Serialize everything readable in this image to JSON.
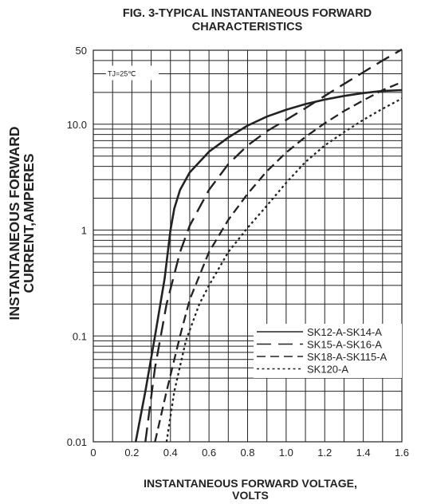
{
  "chart_data": {
    "type": "line",
    "title_lines": [
      "FIG. 3-TYPICAL INSTANTANEOUS FORWARD",
      "CHARACTERISTICS"
    ],
    "xlabel_lines": [
      "INSTANTANEOUS FORWARD VOLTAGE,",
      "VOLTS"
    ],
    "ylabel_lines": [
      "INSTANTANEOUS FORWARD",
      "CURRENT,AMPERES"
    ],
    "annotation": "TJ=25℃",
    "x_scale": "linear",
    "y_scale": "log",
    "xlim": [
      0,
      1.6
    ],
    "ylim": [
      0.01,
      50
    ],
    "x_ticks": [
      0,
      0.2,
      0.4,
      0.6,
      0.8,
      1.0,
      1.2,
      1.4,
      1.6
    ],
    "x_tick_labels": [
      "0",
      "0.2",
      "0.4",
      "0.6",
      "0.8",
      "1.0",
      "1.2",
      "1.4",
      "1.6"
    ],
    "y_ticks": [
      0.01,
      0.1,
      1,
      10,
      50
    ],
    "y_tick_labels": [
      "0.01",
      "0.1",
      "1",
      "10.0",
      "50"
    ],
    "grid": true,
    "legend_position": "lower-right",
    "series": [
      {
        "name": "SK12-A-SK14-A",
        "dash": "solid",
        "color": "#222222",
        "points": [
          [
            0.22,
            0.01
          ],
          [
            0.27,
            0.03
          ],
          [
            0.32,
            0.1
          ],
          [
            0.37,
            0.35
          ],
          [
            0.4,
            1.0
          ],
          [
            0.42,
            1.6
          ],
          [
            0.45,
            2.4
          ],
          [
            0.5,
            3.5
          ],
          [
            0.6,
            5.5
          ],
          [
            0.7,
            7.5
          ],
          [
            0.8,
            9.7
          ],
          [
            0.9,
            11.8
          ],
          [
            1.0,
            13.7
          ],
          [
            1.1,
            15.5
          ],
          [
            1.2,
            17.1
          ],
          [
            1.3,
            18.5
          ],
          [
            1.4,
            19.7
          ],
          [
            1.5,
            20.6
          ],
          [
            1.6,
            21.0
          ]
        ]
      },
      {
        "name": "SK15-A-SK16-A",
        "dash": "long-dash",
        "color": "#222222",
        "points": [
          [
            0.27,
            0.01
          ],
          [
            0.32,
            0.05
          ],
          [
            0.38,
            0.2
          ],
          [
            0.45,
            0.62
          ],
          [
            0.5,
            1.1
          ],
          [
            0.6,
            2.4
          ],
          [
            0.7,
            4.2
          ],
          [
            0.8,
            6.3
          ],
          [
            0.9,
            8.6
          ],
          [
            1.0,
            11.0
          ],
          [
            1.1,
            14.2
          ],
          [
            1.2,
            18.5
          ],
          [
            1.3,
            24.0
          ],
          [
            1.4,
            31.0
          ],
          [
            1.5,
            40.0
          ],
          [
            1.6,
            51.0
          ]
        ]
      },
      {
        "name": "SK18-A-SK115-A",
        "dash": "dash",
        "color": "#222222",
        "points": [
          [
            0.32,
            0.01
          ],
          [
            0.38,
            0.03
          ],
          [
            0.45,
            0.1
          ],
          [
            0.5,
            0.22
          ],
          [
            0.6,
            0.62
          ],
          [
            0.7,
            1.25
          ],
          [
            0.8,
            2.2
          ],
          [
            0.9,
            3.6
          ],
          [
            1.0,
            5.4
          ],
          [
            1.1,
            7.6
          ],
          [
            1.2,
            10.2
          ],
          [
            1.3,
            13.3
          ],
          [
            1.4,
            16.8
          ],
          [
            1.5,
            21.0
          ],
          [
            1.6,
            25.0
          ]
        ]
      },
      {
        "name": "SK120-A",
        "dash": "dotted",
        "color": "#222222",
        "points": [
          [
            0.38,
            0.01
          ],
          [
            0.42,
            0.03
          ],
          [
            0.48,
            0.09
          ],
          [
            0.55,
            0.2
          ],
          [
            0.6,
            0.3
          ],
          [
            0.7,
            0.62
          ],
          [
            0.8,
            1.05
          ],
          [
            0.9,
            1.7
          ],
          [
            1.0,
            2.8
          ],
          [
            1.1,
            4.4
          ],
          [
            1.2,
            6.3
          ],
          [
            1.3,
            8.4
          ],
          [
            1.4,
            11.0
          ],
          [
            1.5,
            14.0
          ],
          [
            1.6,
            17.5
          ]
        ]
      }
    ]
  }
}
